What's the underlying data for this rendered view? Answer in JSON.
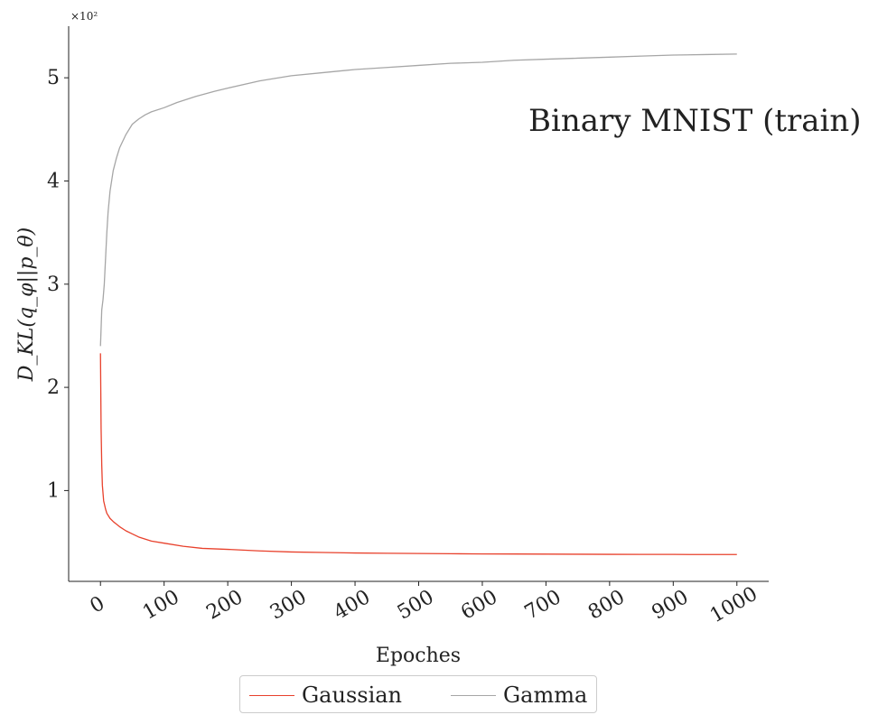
{
  "chart_data": {
    "type": "line",
    "title": "",
    "annotation": "Binary MNIST (train)",
    "xlabel": "Epoches",
    "ylabel": "D_KL(q_φ||p_θ)",
    "y_scale_note": "×10²",
    "xlim": [
      -50,
      1050
    ],
    "ylim": [
      0.12,
      5.5
    ],
    "x_ticks": [
      0,
      100,
      200,
      300,
      400,
      500,
      600,
      700,
      800,
      900,
      1000
    ],
    "x_tick_labels": [
      "0",
      "100",
      "200",
      "300",
      "400",
      "500",
      "600",
      "700",
      "800",
      "900",
      "1000"
    ],
    "y_ticks": [
      1,
      2,
      3,
      4,
      5
    ],
    "y_tick_labels": [
      "1",
      "2",
      "3",
      "4",
      "5"
    ],
    "grid": false,
    "legend_position": "bottom-center",
    "series": [
      {
        "name": "Gaussian",
        "color": "#e8412c",
        "x": [
          0,
          1,
          2,
          3,
          5,
          8,
          10,
          15,
          20,
          30,
          40,
          50,
          60,
          80,
          100,
          130,
          160,
          200,
          250,
          300,
          350,
          400,
          450,
          500,
          550,
          600,
          650,
          700,
          750,
          800,
          850,
          900,
          950,
          1000
        ],
        "values": [
          2.33,
          1.6,
          1.25,
          1.05,
          0.9,
          0.82,
          0.78,
          0.73,
          0.7,
          0.65,
          0.61,
          0.58,
          0.55,
          0.51,
          0.49,
          0.46,
          0.44,
          0.43,
          0.415,
          0.405,
          0.4,
          0.395,
          0.392,
          0.39,
          0.388,
          0.386,
          0.385,
          0.384,
          0.383,
          0.382,
          0.381,
          0.381,
          0.38,
          0.38
        ]
      },
      {
        "name": "Gamma",
        "color": "#a6a6a6",
        "x": [
          0,
          2,
          4,
          6,
          8,
          10,
          12,
          15,
          20,
          25,
          30,
          40,
          50,
          60,
          70,
          80,
          100,
          120,
          150,
          180,
          200,
          250,
          300,
          350,
          400,
          450,
          500,
          550,
          600,
          650,
          700,
          750,
          800,
          850,
          900,
          950,
          1000
        ],
        "values": [
          2.4,
          2.75,
          2.85,
          3.0,
          3.25,
          3.5,
          3.7,
          3.9,
          4.1,
          4.22,
          4.32,
          4.45,
          4.55,
          4.6,
          4.64,
          4.67,
          4.71,
          4.76,
          4.82,
          4.87,
          4.9,
          4.97,
          5.02,
          5.05,
          5.08,
          5.1,
          5.12,
          5.14,
          5.15,
          5.17,
          5.18,
          5.19,
          5.2,
          5.21,
          5.22,
          5.225,
          5.23
        ]
      }
    ]
  }
}
